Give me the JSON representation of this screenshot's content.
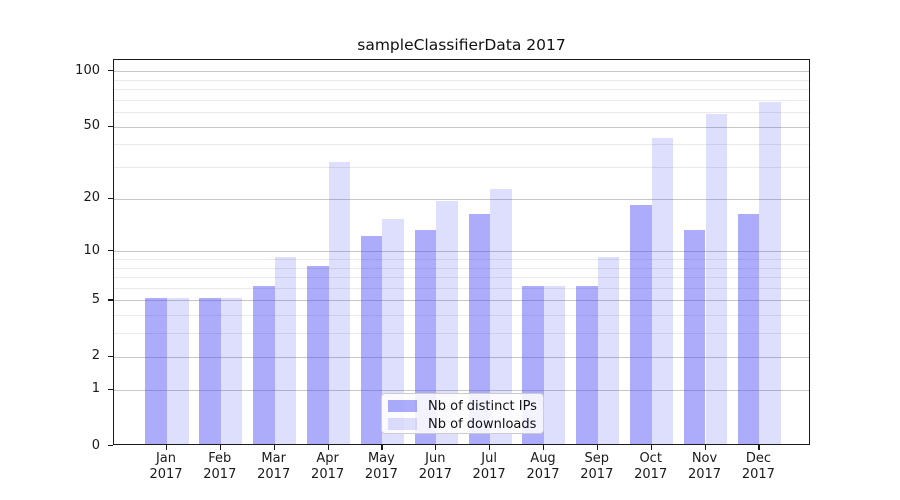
{
  "chart_data": {
    "type": "bar",
    "title": "sampleClassifierData 2017",
    "x_year": "2017",
    "categories": [
      "Jan",
      "Feb",
      "Mar",
      "Apr",
      "May",
      "Jun",
      "Jul",
      "Aug",
      "Sep",
      "Oct",
      "Nov",
      "Dec"
    ],
    "series": [
      {
        "name": "Nb of distinct IPs",
        "color": "rgba(70,70,245,0.45)",
        "color_on_white_hex": "#ababf9",
        "values": [
          5,
          5,
          6,
          8,
          12,
          13,
          16,
          6,
          6,
          18,
          13,
          16
        ]
      },
      {
        "name": "Nb of downloads",
        "color": "rgba(70,70,245,0.18)",
        "color_on_white_hex": "#dedefb",
        "values": [
          5,
          5,
          9,
          31,
          15,
          19,
          22,
          6,
          9,
          42,
          57,
          66
        ]
      }
    ],
    "y_axis": {
      "scale": "log1p",
      "tick_values": [
        0,
        1,
        2,
        5,
        10,
        20,
        50,
        100
      ],
      "minor_gridline_values": [
        3,
        4,
        6,
        7,
        8,
        9,
        30,
        40,
        60,
        70,
        80,
        90
      ],
      "ylim": [
        0,
        114
      ]
    },
    "grid": "horizontal",
    "legend": {
      "position": "lower center"
    },
    "colors": {
      "major_grid": "#c6c6c6",
      "minor_grid": "#eaeaea",
      "spine": "#1a1a1a",
      "text": "#1a1a1a"
    }
  }
}
